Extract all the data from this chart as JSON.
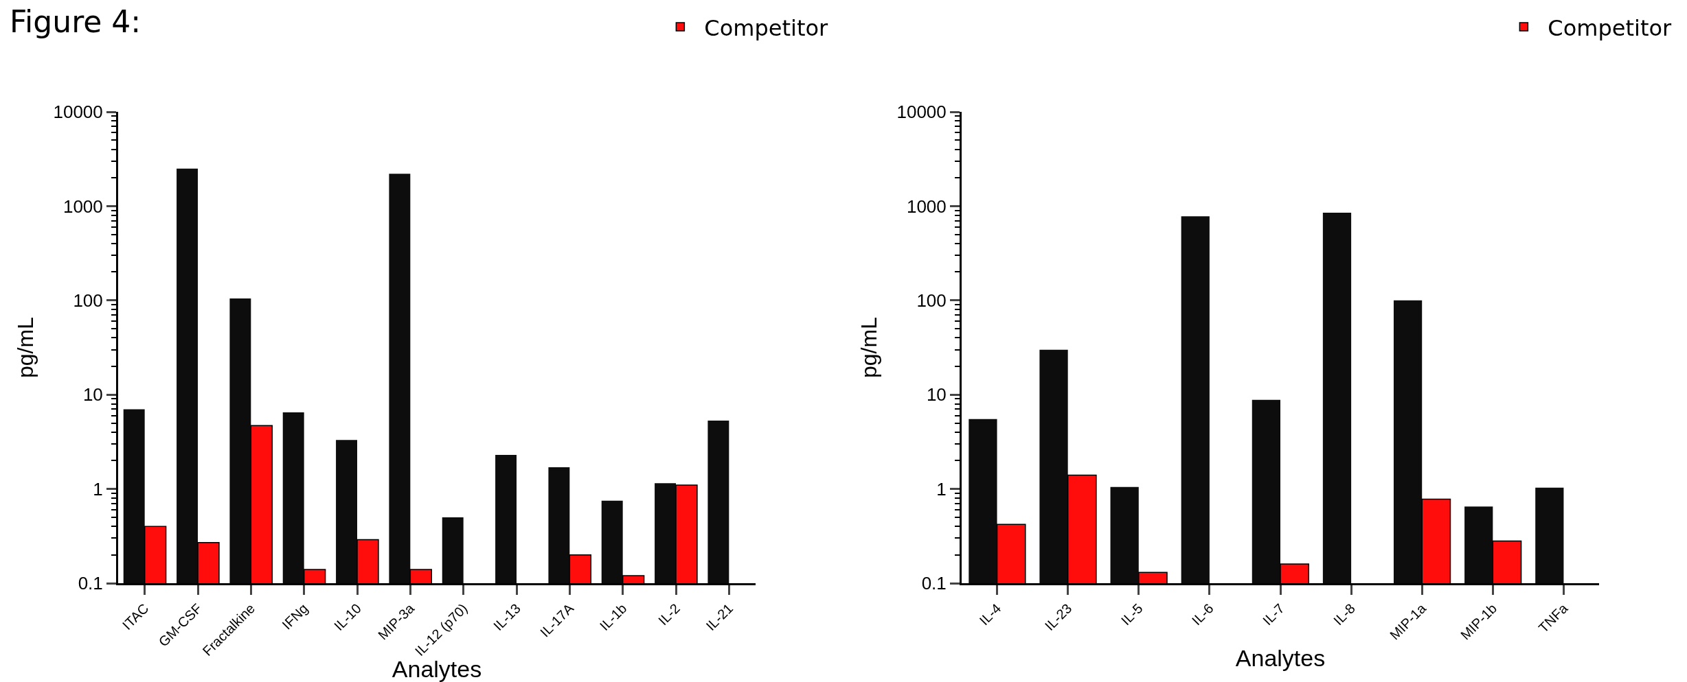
{
  "chart_data": [
    {
      "type": "bar",
      "title": "Figure 4:",
      "xlabel": "Analytes",
      "ylabel": "pg/mL",
      "log": "y",
      "legend": "top right",
      "ylim": [
        0.1,
        10000
      ],
      "yticks": [
        0.1,
        1,
        10,
        100,
        1000,
        10000
      ],
      "grid": false,
      "categories": [
        "ITAC",
        "GM-CSF",
        "Fractalkine",
        "IFNg",
        "IL-10",
        "MIP-3a",
        "IL-12 (p70)",
        "IL-13",
        "IL-17A",
        "IL-1b",
        "IL-2",
        "IL-21"
      ],
      "series": [
        {
          "color": "#0d0d0d",
          "values": [
            7,
            2500,
            105,
            6.5,
            3.3,
            2200,
            0.5,
            2.3,
            1.7,
            0.75,
            1.15,
            5.3
          ]
        },
        {
          "name": "Competitor",
          "color": "#ff0d0d",
          "values": [
            0.4,
            0.27,
            4.7,
            0.14,
            0.29,
            0.14,
            null,
            null,
            0.2,
            0.12,
            1.1,
            null
          ]
        }
      ]
    },
    {
      "type": "bar",
      "xlabel": "Analytes",
      "ylabel": "pg/mL",
      "log": "y",
      "legend": "top right",
      "ylim": [
        0.1,
        10000
      ],
      "yticks": [
        0.1,
        1,
        10,
        100,
        1000,
        10000
      ],
      "grid": false,
      "categories": [
        "IL-4",
        "IL-23",
        "IL-5",
        "IL-6",
        "IL-7",
        "IL-8",
        "MIP-1a",
        "MIP-1b",
        "TNFa"
      ],
      "series": [
        {
          "color": "#0d0d0d",
          "values": [
            5.5,
            30,
            1.05,
            780,
            8.8,
            850,
            100,
            0.65,
            1.03
          ]
        },
        {
          "name": "Competitor",
          "color": "#ff0d0d",
          "values": [
            0.42,
            1.4,
            0.13,
            null,
            0.16,
            null,
            0.78,
            0.28,
            null
          ]
        }
      ]
    }
  ]
}
